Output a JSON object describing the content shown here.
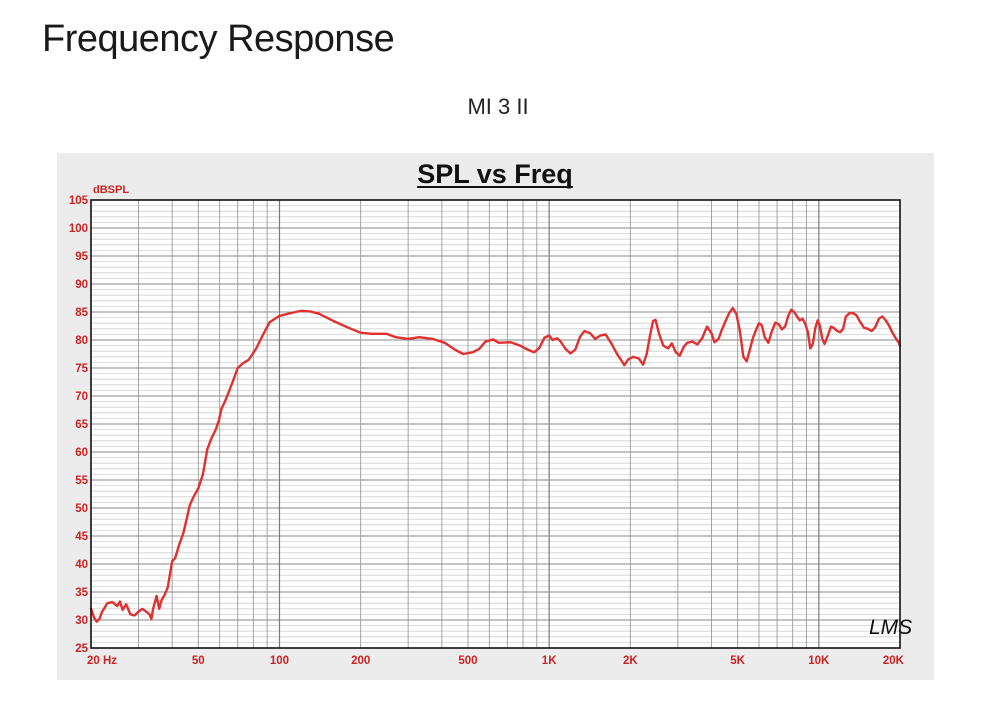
{
  "page": {
    "title": "Frequency Response",
    "subtitle": "MI 3 II"
  },
  "chart_data": {
    "type": "line",
    "title": "SPL vs Freq",
    "ylabel": "dBSPL",
    "xlabel": "",
    "x_scale": "log",
    "xlim": [
      20,
      20000
    ],
    "ylim": [
      25,
      105
    ],
    "grid": true,
    "y_ticks": [
      25,
      30,
      35,
      40,
      45,
      50,
      55,
      60,
      65,
      70,
      75,
      80,
      85,
      90,
      95,
      100,
      105
    ],
    "x_ticks": [
      {
        "value": 20,
        "label": "20  Hz"
      },
      {
        "value": 50,
        "label": "50"
      },
      {
        "value": 100,
        "label": "100"
      },
      {
        "value": 200,
        "label": "200"
      },
      {
        "value": 500,
        "label": "500"
      },
      {
        "value": 1000,
        "label": "1K"
      },
      {
        "value": 2000,
        "label": "2K"
      },
      {
        "value": 5000,
        "label": "5K"
      },
      {
        "value": 10000,
        "label": "10K"
      },
      {
        "value": 20000,
        "label": "20K"
      }
    ],
    "watermark": "LMS",
    "colors": {
      "line": "#e03030",
      "axis_text": "#cc2222",
      "grid": "#9a9a9a",
      "background": "#ffffff"
    },
    "series": [
      {
        "points": [
          [
            20,
            32
          ],
          [
            20.5,
            30.5
          ],
          [
            21,
            29.7
          ],
          [
            21.5,
            30.2
          ],
          [
            22,
            31.5
          ],
          [
            23,
            33
          ],
          [
            24,
            33.2
          ],
          [
            25,
            32.5
          ],
          [
            25.6,
            33.3
          ],
          [
            26.2,
            31.8
          ],
          [
            27,
            32.8
          ],
          [
            28,
            31
          ],
          [
            29,
            30.8
          ],
          [
            30,
            31.5
          ],
          [
            31,
            32
          ],
          [
            32,
            31.5
          ],
          [
            33,
            31
          ],
          [
            33.5,
            30.2
          ],
          [
            34,
            32
          ],
          [
            35,
            34.3
          ],
          [
            35.8,
            32
          ],
          [
            36.5,
            33.5
          ],
          [
            37.5,
            34.5
          ],
          [
            38.5,
            35.8
          ],
          [
            40,
            40.5
          ],
          [
            41,
            41
          ],
          [
            42.5,
            43.5
          ],
          [
            44,
            45.5
          ],
          [
            45.5,
            48.5
          ],
          [
            46.5,
            50.5
          ],
          [
            48,
            52
          ],
          [
            50,
            53.5
          ],
          [
            52,
            56
          ],
          [
            54,
            60.5
          ],
          [
            56,
            62.5
          ],
          [
            58,
            64
          ],
          [
            59.5,
            65.5
          ],
          [
            61,
            67.8
          ],
          [
            62.5,
            68.8
          ],
          [
            64,
            70
          ],
          [
            67,
            72.5
          ],
          [
            70,
            75
          ],
          [
            73,
            75.8
          ],
          [
            77,
            76.5
          ],
          [
            82,
            78.5
          ],
          [
            87,
            81
          ],
          [
            92,
            83.2
          ],
          [
            100,
            84.3
          ],
          [
            110,
            84.8
          ],
          [
            120,
            85.2
          ],
          [
            130,
            85.1
          ],
          [
            140,
            84.7
          ],
          [
            160,
            83.3
          ],
          [
            180,
            82.2
          ],
          [
            200,
            81.3
          ],
          [
            220,
            81.1
          ],
          [
            250,
            81.1
          ],
          [
            270,
            80.5
          ],
          [
            300,
            80.2
          ],
          [
            330,
            80.5
          ],
          [
            370,
            80.2
          ],
          [
            410,
            79.5
          ],
          [
            450,
            78.2
          ],
          [
            480,
            77.5
          ],
          [
            520,
            77.8
          ],
          [
            550,
            78.4
          ],
          [
            580,
            79.7
          ],
          [
            620,
            80.1
          ],
          [
            650,
            79.5
          ],
          [
            720,
            79.6
          ],
          [
            780,
            79
          ],
          [
            830,
            78.3
          ],
          [
            880,
            77.8
          ],
          [
            920,
            78.6
          ],
          [
            960,
            80.4
          ],
          [
            1000,
            80.8
          ],
          [
            1030,
            80
          ],
          [
            1070,
            80.3
          ],
          [
            1100,
            79.8
          ],
          [
            1150,
            78.4
          ],
          [
            1200,
            77.6
          ],
          [
            1250,
            78.3
          ],
          [
            1300,
            80.5
          ],
          [
            1350,
            81.6
          ],
          [
            1420,
            81.2
          ],
          [
            1480,
            80.2
          ],
          [
            1550,
            80.8
          ],
          [
            1620,
            81
          ],
          [
            1700,
            79.4
          ],
          [
            1780,
            77.6
          ],
          [
            1850,
            76.4
          ],
          [
            1900,
            75.5
          ],
          [
            1960,
            76.5
          ],
          [
            2050,
            77
          ],
          [
            2150,
            76.7
          ],
          [
            2230,
            75.6
          ],
          [
            2300,
            77.5
          ],
          [
            2370,
            81
          ],
          [
            2430,
            83.4
          ],
          [
            2480,
            83.6
          ],
          [
            2560,
            81
          ],
          [
            2650,
            79
          ],
          [
            2760,
            78.5
          ],
          [
            2850,
            79.4
          ],
          [
            2950,
            77.8
          ],
          [
            3050,
            77.2
          ],
          [
            3150,
            78.7
          ],
          [
            3250,
            79.5
          ],
          [
            3400,
            79.7
          ],
          [
            3550,
            79.2
          ],
          [
            3700,
            80.4
          ],
          [
            3850,
            82.4
          ],
          [
            4000,
            81.2
          ],
          [
            4100,
            79.6
          ],
          [
            4250,
            80.2
          ],
          [
            4350,
            81.6
          ],
          [
            4500,
            83.3
          ],
          [
            4650,
            84.8
          ],
          [
            4800,
            85.7
          ],
          [
            4950,
            84.6
          ],
          [
            5100,
            81.5
          ],
          [
            5250,
            77
          ],
          [
            5400,
            76.2
          ],
          [
            5550,
            78.3
          ],
          [
            5700,
            80.4
          ],
          [
            5850,
            81.8
          ],
          [
            6000,
            83
          ],
          [
            6150,
            82.6
          ],
          [
            6300,
            80.5
          ],
          [
            6500,
            79.5
          ],
          [
            6700,
            81.6
          ],
          [
            6900,
            83.1
          ],
          [
            7100,
            82.8
          ],
          [
            7300,
            81.9
          ],
          [
            7500,
            82.4
          ],
          [
            7700,
            84.3
          ],
          [
            7900,
            85.4
          ],
          [
            8100,
            85
          ],
          [
            8300,
            84.2
          ],
          [
            8500,
            83.5
          ],
          [
            8700,
            83.8
          ],
          [
            8900,
            82.9
          ],
          [
            9100,
            81.5
          ],
          [
            9300,
            78.5
          ],
          [
            9500,
            79.3
          ],
          [
            9700,
            82.1
          ],
          [
            9900,
            83.5
          ],
          [
            10100,
            82.5
          ],
          [
            10300,
            80.2
          ],
          [
            10500,
            79.3
          ],
          [
            10800,
            80.8
          ],
          [
            11100,
            82.4
          ],
          [
            11400,
            82.1
          ],
          [
            11700,
            81.6
          ],
          [
            12000,
            81.4
          ],
          [
            12300,
            82
          ],
          [
            12600,
            84.2
          ],
          [
            13000,
            84.8
          ],
          [
            13400,
            84.8
          ],
          [
            13800,
            84.4
          ],
          [
            14200,
            83.3
          ],
          [
            14700,
            82.2
          ],
          [
            15200,
            82
          ],
          [
            15700,
            81.6
          ],
          [
            16200,
            82.3
          ],
          [
            16700,
            83.8
          ],
          [
            17200,
            84.2
          ],
          [
            17700,
            83.5
          ],
          [
            18200,
            82.6
          ],
          [
            18700,
            81.4
          ],
          [
            19300,
            80.3
          ],
          [
            19800,
            79.5
          ],
          [
            20000,
            79
          ]
        ]
      }
    ]
  }
}
